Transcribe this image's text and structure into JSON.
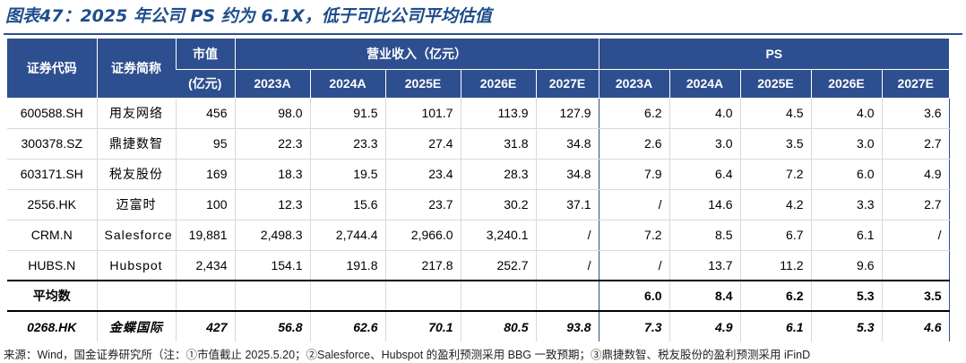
{
  "title": "图表47：2025 年公司 PS 约为 6.1X，低于可比公司平均估值",
  "header": {
    "code_label": "证券代码",
    "name_label": "证券简称",
    "mcap_label": "市值",
    "mcap_unit": "(亿元)",
    "revenue_label": "营业收入（亿元）",
    "ps_label": "PS",
    "years": [
      "2023A",
      "2024A",
      "2025E",
      "2026E",
      "2027E"
    ]
  },
  "rows": [
    {
      "code": "600588.SH",
      "name": "用友网络",
      "mcap": "456",
      "rev": [
        "98.0",
        "91.5",
        "101.7",
        "113.9",
        "127.9"
      ],
      "ps": [
        "6.2",
        "4.0",
        "4.5",
        "4.0",
        "3.6"
      ]
    },
    {
      "code": "300378.SZ",
      "name": "鼎捷数智",
      "mcap": "95",
      "rev": [
        "22.3",
        "23.3",
        "27.4",
        "31.8",
        "34.8"
      ],
      "ps": [
        "2.6",
        "3.0",
        "3.5",
        "3.0",
        "2.7"
      ]
    },
    {
      "code": "603171.SH",
      "name": "税友股份",
      "mcap": "169",
      "rev": [
        "18.3",
        "19.5",
        "23.4",
        "28.3",
        "34.8"
      ],
      "ps": [
        "7.9",
        "6.4",
        "7.2",
        "6.0",
        "4.9"
      ]
    },
    {
      "code": "2556.HK",
      "name": "迈富时",
      "mcap": "100",
      "rev": [
        "12.3",
        "15.6",
        "23.7",
        "30.2",
        "37.1"
      ],
      "ps": [
        "/",
        "14.6",
        "4.2",
        "3.3",
        "2.7"
      ]
    },
    {
      "code": "CRM.N",
      "name": "Salesforce",
      "mcap": "19,881",
      "rev": [
        "2,498.3",
        "2,744.4",
        "2,966.0",
        "3,240.1",
        "/"
      ],
      "ps": [
        "7.2",
        "8.5",
        "6.7",
        "6.1",
        "/"
      ]
    },
    {
      "code": "HUBS.N",
      "name": "Hubspot",
      "mcap": "2,434",
      "rev": [
        "154.1",
        "191.8",
        "217.8",
        "252.7",
        "/"
      ],
      "ps": [
        "/",
        "13.7",
        "11.2",
        "9.6",
        ""
      ]
    }
  ],
  "average": {
    "label": "平均数",
    "ps": [
      "6.0",
      "8.4",
      "6.2",
      "5.3",
      "3.5"
    ]
  },
  "target": {
    "code": "0268.HK",
    "name": "金蝶国际",
    "mcap": "427",
    "rev": [
      "56.8",
      "62.6",
      "70.1",
      "80.5",
      "93.8"
    ],
    "ps": [
      "7.3",
      "4.9",
      "6.1",
      "5.3",
      "4.6"
    ]
  },
  "note": "来源：Wind，国金证券研究所（注：①市值截止 2025.5.20；②Salesforce、Hubspot 的盈利预测采用 BBG 一致预期；③鼎捷数智、税友股份的盈利预测采用 iFinD"
}
